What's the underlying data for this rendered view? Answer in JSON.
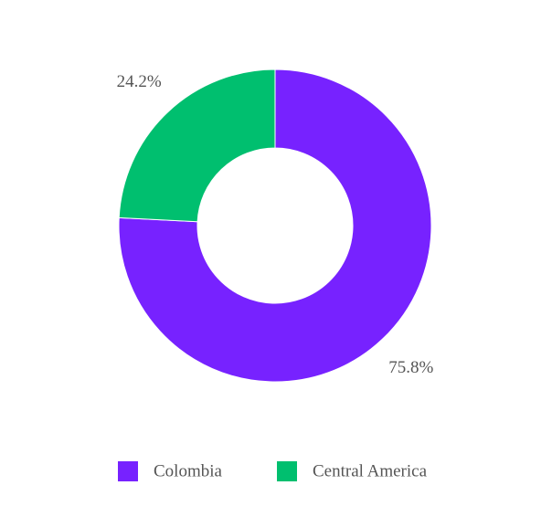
{
  "chart_data": {
    "type": "donut",
    "categories": [
      "Colombia",
      "Central America"
    ],
    "values": [
      75.8,
      24.2
    ],
    "value_labels": [
      "75.8%",
      "24.2%"
    ],
    "colors": [
      "#7722ff",
      "#00bf6f"
    ],
    "legend": "bottom"
  }
}
